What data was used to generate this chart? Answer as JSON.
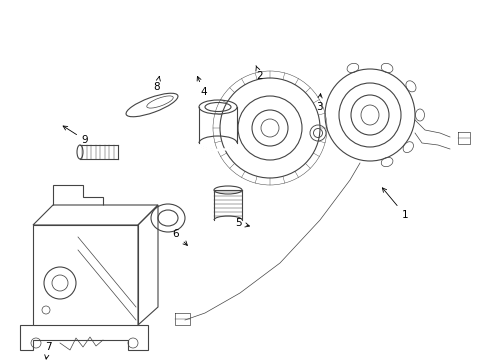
{
  "bg_color": "#ffffff",
  "line_color": "#444444",
  "line_width": 0.8,
  "thin_line": 0.5,
  "label_fontsize": 7.5,
  "fig_width": 4.89,
  "fig_height": 3.6,
  "dpi": 100
}
